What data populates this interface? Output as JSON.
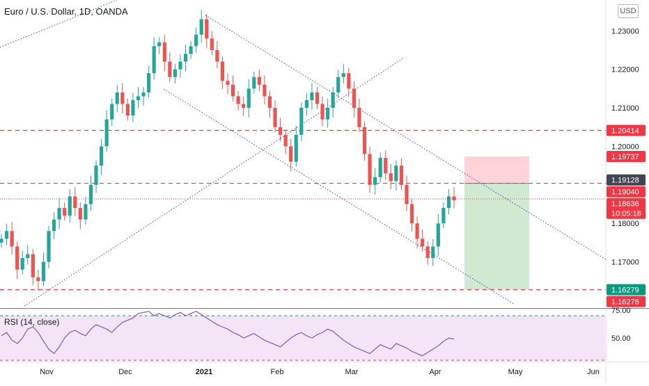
{
  "header": {
    "title": "Euro / U.S. Dollar, 1D, OANDA",
    "currency_button": "USD"
  },
  "price_axis": {
    "ticks": [
      "1.23000",
      "1.22000",
      "1.21000",
      "1.20000",
      "1.18000",
      "1.17000"
    ]
  },
  "price_labels": [
    {
      "text": "1.20414",
      "color": "#f23645"
    },
    {
      "text": "1.19737",
      "color": "#f23645"
    },
    {
      "text": "1.19128",
      "color": "#434651"
    },
    {
      "text": "1.19040",
      "color": "#f23645"
    },
    {
      "text": "1.18636",
      "color": "#f23645"
    },
    {
      "text": "10:05:18",
      "color": "#f23645"
    },
    {
      "text": "1.16279",
      "color": "#089981"
    },
    {
      "text": "1.16278",
      "color": "#f23645"
    }
  ],
  "time_axis": {
    "ticks": [
      "Nov",
      "Dec",
      "2021",
      "Feb",
      "Mar",
      "Apr",
      "May",
      "Jun"
    ]
  },
  "rsi": {
    "label": "RSI (14, close)",
    "ticks": [
      "75.00",
      "50.00"
    ]
  },
  "colors": {
    "up": "#26a69a",
    "down": "#ef5350",
    "level": "#f23645",
    "trendline": "#3c3fc8",
    "rsi_line": "#7e57c2",
    "rsi_band": "#f3e5f5",
    "profit_zone": "#c8e6c9",
    "loss_zone": "#ffcdd2"
  },
  "chart_data": {
    "type": "candlestick",
    "symbol": "Euro / U.S. Dollar",
    "timeframe": "1D",
    "ylim": [
      1.158,
      1.238
    ],
    "x_ticks": [
      "Nov",
      "Dec",
      "2021",
      "Feb",
      "Mar",
      "Apr",
      "May",
      "Jun"
    ],
    "horizontal_levels": [
      1.20414,
      1.1904,
      1.16279
    ],
    "last_price": 1.18636,
    "position": {
      "type": "short",
      "entry": 1.1904,
      "stop": 1.19737,
      "target": 1.16279
    },
    "approx_closes": [
      1.176,
      1.178,
      1.174,
      1.168,
      1.171,
      1.172,
      1.166,
      1.165,
      1.17,
      1.178,
      1.181,
      1.184,
      1.182,
      1.187,
      1.184,
      1.181,
      1.185,
      1.19,
      1.195,
      1.2,
      1.207,
      1.211,
      1.214,
      1.211,
      1.208,
      1.212,
      1.213,
      1.214,
      1.219,
      1.226,
      1.227,
      1.222,
      1.218,
      1.22,
      1.222,
      1.224,
      1.226,
      1.229,
      1.233,
      1.228,
      1.225,
      1.222,
      1.217,
      1.216,
      1.213,
      1.211,
      1.21,
      1.215,
      1.218,
      1.216,
      1.213,
      1.21,
      1.205,
      1.203,
      1.2,
      1.196,
      1.203,
      1.21,
      1.212,
      1.214,
      1.211,
      1.207,
      1.21,
      1.214,
      1.218,
      1.219,
      1.215,
      1.21,
      1.205,
      1.198,
      1.19,
      1.192,
      1.197,
      1.193,
      1.191,
      1.195,
      1.19,
      1.185,
      1.18,
      1.176,
      1.174,
      1.171,
      1.174,
      1.18,
      1.184,
      1.187,
      1.186
    ],
    "rsi_ylim": [
      30,
      75
    ],
    "rsi_levels": [
      70,
      30
    ],
    "rsi_values": [
      52,
      55,
      48,
      45,
      50,
      58,
      60,
      55,
      47,
      40,
      36,
      42,
      50,
      55,
      57,
      54,
      52,
      58,
      62,
      60,
      58,
      55,
      60,
      64,
      66,
      68,
      72,
      73,
      74,
      70,
      72,
      70,
      68,
      71,
      73,
      70,
      72,
      74,
      71,
      68,
      65,
      62,
      60,
      58,
      55,
      53,
      50,
      52,
      54,
      51,
      48,
      46,
      44,
      42,
      46,
      50,
      53,
      55,
      52,
      50,
      53,
      55,
      58,
      56,
      52,
      48,
      45,
      42,
      40,
      38,
      36,
      40,
      44,
      42,
      40,
      45,
      43,
      41,
      38,
      36,
      34,
      37,
      40,
      43,
      47,
      50,
      49
    ]
  }
}
